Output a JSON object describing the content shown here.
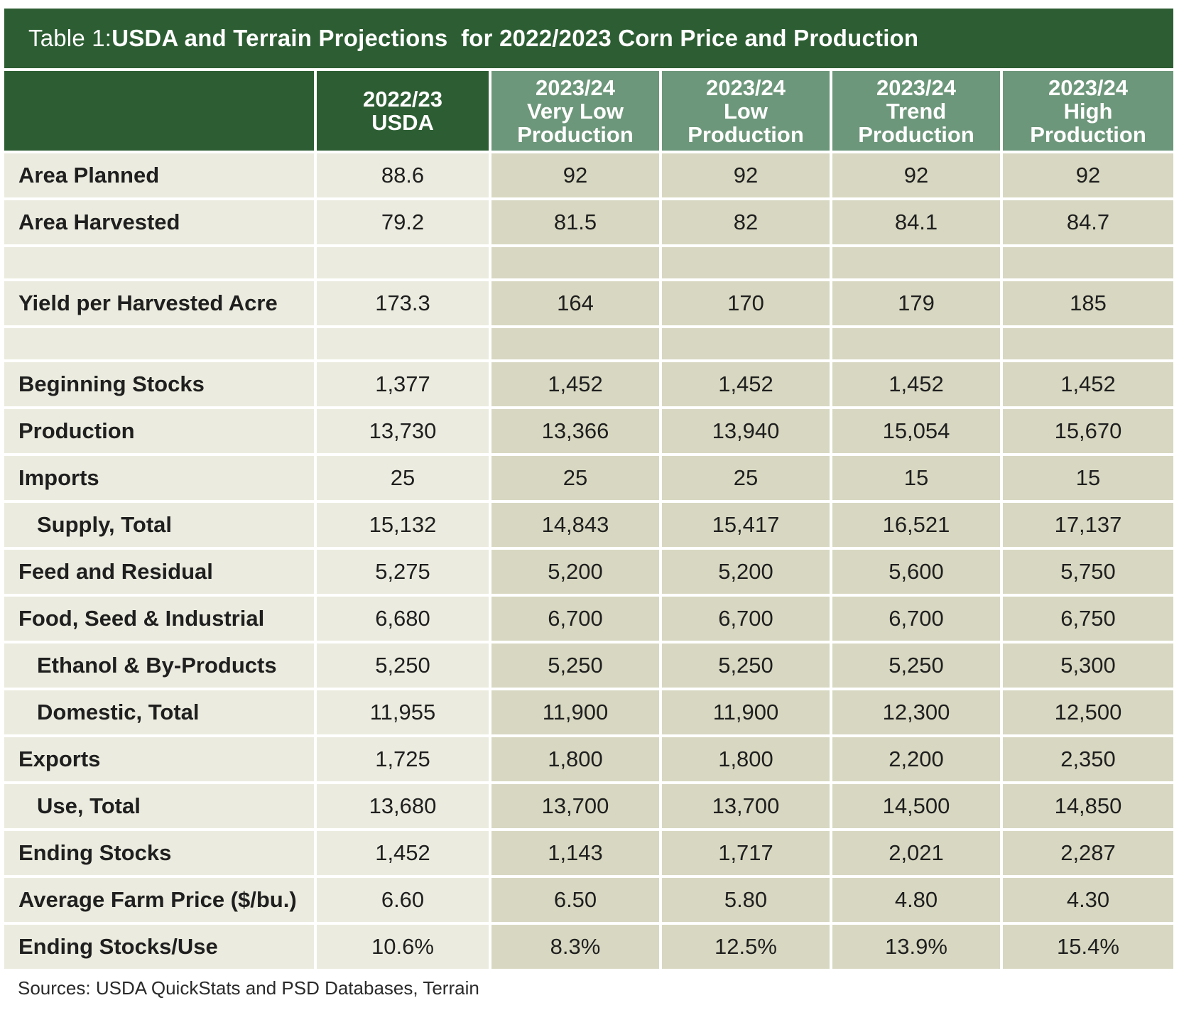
{
  "title": {
    "prefix": "Table 1: ",
    "main": "USDA and Terrain Projections  for 2022/2023 Corn Price and Production"
  },
  "columns": [
    {
      "line1": "2022/23",
      "line2": "USDA",
      "line3": ""
    },
    {
      "line1": "2023/24",
      "line2": "Very Low",
      "line3": "Production"
    },
    {
      "line1": "2023/24",
      "line2": "Low",
      "line3": "Production"
    },
    {
      "line1": "2023/24",
      "line2": "Trend",
      "line3": "Production"
    },
    {
      "line1": "2023/24",
      "line2": "High",
      "line3": "Production"
    }
  ],
  "rows": [
    {
      "label": "Area Planned",
      "indent": false,
      "values": [
        "88.6",
        "92",
        "92",
        "92",
        "92"
      ]
    },
    {
      "label": "Area Harvested",
      "indent": false,
      "values": [
        "79.2",
        "81.5",
        "82",
        "84.1",
        "84.7"
      ]
    },
    {
      "spacer": true
    },
    {
      "label": "Yield per Harvested Acre",
      "indent": false,
      "values": [
        "173.3",
        "164",
        "170",
        "179",
        "185"
      ]
    },
    {
      "spacer": true
    },
    {
      "label": "Beginning Stocks",
      "indent": false,
      "values": [
        "1,377",
        "1,452",
        "1,452",
        "1,452",
        "1,452"
      ]
    },
    {
      "label": "Production",
      "indent": false,
      "values": [
        "13,730",
        "13,366",
        "13,940",
        "15,054",
        "15,670"
      ]
    },
    {
      "label": "Imports",
      "indent": false,
      "values": [
        "25",
        "25",
        "25",
        "15",
        "15"
      ]
    },
    {
      "label": "Supply, Total",
      "indent": true,
      "values": [
        "15,132",
        "14,843",
        "15,417",
        "16,521",
        "17,137"
      ]
    },
    {
      "label": "Feed and Residual",
      "indent": false,
      "values": [
        "5,275",
        "5,200",
        "5,200",
        "5,600",
        "5,750"
      ]
    },
    {
      "label": "Food, Seed & Industrial",
      "indent": false,
      "values": [
        "6,680",
        "6,700",
        "6,700",
        "6,700",
        "6,750"
      ]
    },
    {
      "label": "Ethanol & By-Products",
      "indent": true,
      "values": [
        "5,250",
        "5,250",
        "5,250",
        "5,250",
        "5,300"
      ]
    },
    {
      "label": "Domestic, Total",
      "indent": true,
      "values": [
        "11,955",
        "11,900",
        "11,900",
        "12,300",
        "12,500"
      ]
    },
    {
      "label": "Exports",
      "indent": false,
      "values": [
        "1,725",
        "1,800",
        "1,800",
        "2,200",
        "2,350"
      ]
    },
    {
      "label": "Use, Total",
      "indent": true,
      "values": [
        "13,680",
        "13,700",
        "13,700",
        "14,500",
        "14,850"
      ]
    },
    {
      "label": "Ending Stocks",
      "indent": false,
      "values": [
        "1,452",
        "1,143",
        "1,717",
        "2,021",
        "2,287"
      ]
    },
    {
      "label": "Average Farm Price ($/bu.)",
      "indent": false,
      "values": [
        "6.60",
        "6.50",
        "5.80",
        "4.80",
        "4.30"
      ]
    },
    {
      "label": "Ending Stocks/Use",
      "indent": false,
      "values": [
        "10.6%",
        "8.3%",
        "12.5%",
        "13.9%",
        "15.4%"
      ]
    }
  ],
  "source": "Sources: USDA QuickStats and PSD Databases, Terrain",
  "colors": {
    "header_dark": "#2d5e33",
    "header_light": "#6d977a",
    "cell_light": "#ebebdf",
    "cell_dark": "#d8d8c2"
  }
}
